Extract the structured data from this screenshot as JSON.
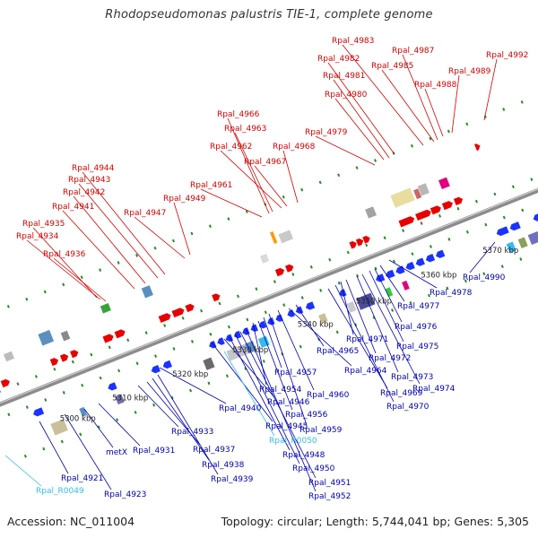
{
  "title": "Rhodopseudomonas palustris TIE-1, complete genome",
  "accession": "Accession: NC_011004",
  "summary": "Topology: circular; Length: 5,744,041 bp; Genes: 5,305",
  "colors": {
    "forward_label": "#d40000",
    "reverse_label": "#0000b0",
    "rna_label": "#33bbee",
    "forward_gene": "#e80000",
    "reverse_gene": "#1a33ff",
    "backbone": "#8c8c8c",
    "tick": "#2a8a2a"
  },
  "axis_ticks": [
    "5300 kbp",
    "5310 kbp",
    "5320 kbp",
    "5330 kbp",
    "5340 kbp",
    "5350 kbp",
    "5360 kbp",
    "5370 kbp"
  ],
  "forward_labels": [
    "Rpal_4935",
    "Rpal_4934",
    "Rpal_4936",
    "Rpal_4941",
    "Rpal_4942",
    "Rpal_4943",
    "Rpal_4944",
    "Rpal_4947",
    "Rpal_4949",
    "Rpal_4961",
    "Rpal_4966",
    "Rpal_4963",
    "Rpal_4962",
    "Rpal_4967",
    "Rpal_4968",
    "Rpal_4979",
    "Rpal_4980",
    "Rpal_4981",
    "Rpal_4982",
    "Rpal_4983",
    "Rpal_4985",
    "Rpal_4987",
    "Rpal_4988",
    "Rpal_4989",
    "Rpal_4992"
  ],
  "reverse_labels": [
    "Rpal_4921",
    "Rpal_4923",
    "metX",
    "Rpal_4931",
    "Rpal_4933",
    "Rpal_4937",
    "Rpal_4938",
    "Rpal_4939",
    "Rpal_4940",
    "Rpal_4945",
    "Rpal_4946",
    "Rpal_4948",
    "Rpal_4950",
    "Rpal_4951",
    "Rpal_4952",
    "Rpal_4954",
    "Rpal_4956",
    "Rpal_4957",
    "Rpal_4959",
    "Rpal_4960",
    "Rpal_4964",
    "Rpal_4965",
    "Rpal_4969",
    "Rpal_4970",
    "Rpal_4971",
    "Rpal_4972",
    "Rpal_4973",
    "Rpal_4974",
    "Rpal_4975",
    "Rpal_4976",
    "Rpal_4977",
    "Rpal_4978",
    "Rpal_4990"
  ],
  "rna_labels": [
    "Rpal_R0049",
    "Rpal_R0050"
  ]
}
